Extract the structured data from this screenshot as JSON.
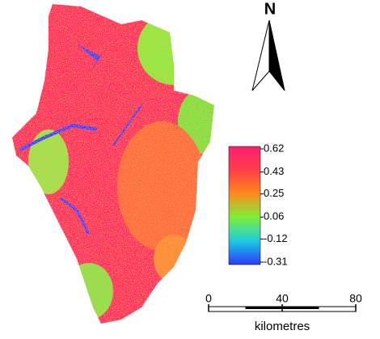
{
  "north": "N",
  "legend": {
    "ticks": [
      0.62,
      0.43,
      0.25,
      0.06,
      -0.12,
      -0.31
    ],
    "colors": [
      "#ff1f6e",
      "#ff3d4a",
      "#ff8a1e",
      "#7cf03a",
      "#1ecbe0",
      "#2b3cff"
    ]
  },
  "scale_bar": {
    "ticks": [
      0,
      40,
      80
    ],
    "unit": "kilometres"
  }
}
